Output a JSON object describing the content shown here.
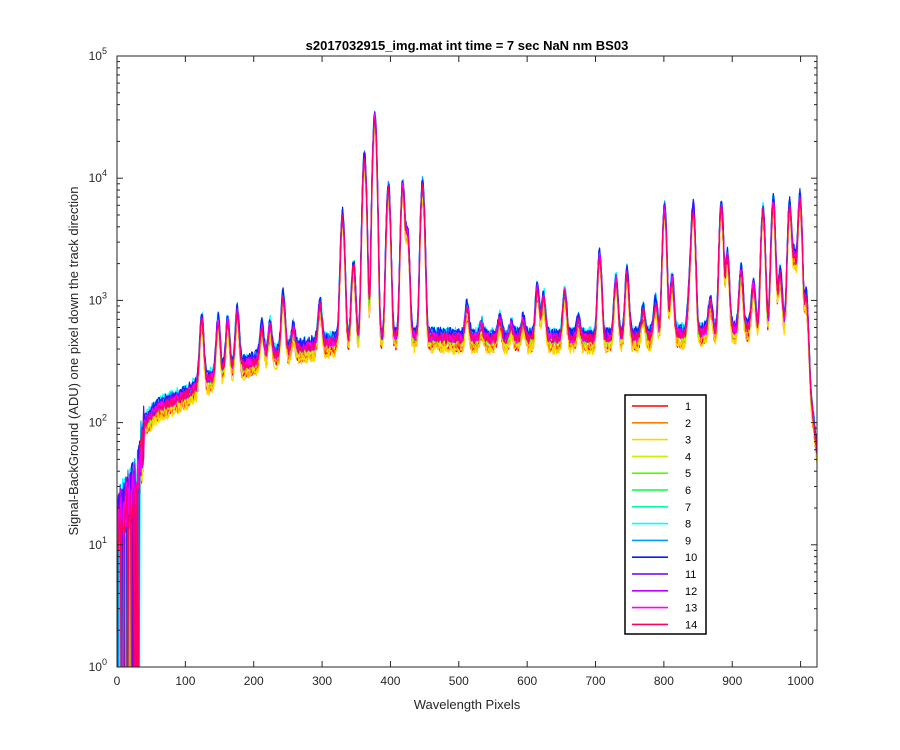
{
  "chart_data": {
    "type": "line",
    "title": "s2017032915_img.mat int time = 7 sec  NaN nm BS03",
    "xlabel": "Wavelength Pixels",
    "ylabel": "Signal-BackGround (ADU) one pixel down the track direction",
    "xlim": [
      0,
      1024
    ],
    "ylim": [
      1,
      100000
    ],
    "yscale": "log",
    "grid": false,
    "legend_position": "lower-right",
    "x_ticks": [
      0,
      100,
      200,
      300,
      400,
      500,
      600,
      700,
      800,
      900,
      1000
    ],
    "y_ticks": [
      {
        "exp": "0",
        "value": 1
      },
      {
        "exp": "1",
        "value": 10
      },
      {
        "exp": "2",
        "value": 100
      },
      {
        "exp": "3",
        "value": 1000
      },
      {
        "exp": "4",
        "value": 10000
      },
      {
        "exp": "5",
        "value": 100000
      }
    ],
    "y_tick_base": "10",
    "baseline": {
      "x": [
        0,
        10,
        20,
        30,
        40,
        50,
        60,
        80,
        100,
        120,
        150,
        180,
        200,
        250,
        300,
        330,
        360,
        400,
        450,
        500,
        600,
        700,
        800,
        900,
        1000,
        1010,
        1024
      ],
      "y": [
        15,
        20,
        25,
        35,
        100,
        120,
        140,
        155,
        175,
        215,
        260,
        300,
        330,
        400,
        460,
        490,
        510,
        520,
        520,
        510,
        510,
        510,
        540,
        600,
        660,
        300,
        60
      ]
    },
    "peaks": [
      {
        "x": 124,
        "y": 730
      },
      {
        "x": 148,
        "y": 700
      },
      {
        "x": 162,
        "y": 680
      },
      {
        "x": 176,
        "y": 820
      },
      {
        "x": 212,
        "y": 620
      },
      {
        "x": 224,
        "y": 640
      },
      {
        "x": 243,
        "y": 1100
      },
      {
        "x": 258,
        "y": 600
      },
      {
        "x": 297,
        "y": 950
      },
      {
        "x": 330,
        "y": 5000
      },
      {
        "x": 346,
        "y": 2000
      },
      {
        "x": 362,
        "y": 15000
      },
      {
        "x": 377,
        "y": 32000
      },
      {
        "x": 397,
        "y": 8500
      },
      {
        "x": 418,
        "y": 8800
      },
      {
        "x": 425,
        "y": 3500
      },
      {
        "x": 447,
        "y": 9000
      },
      {
        "x": 512,
        "y": 900
      },
      {
        "x": 533,
        "y": 650
      },
      {
        "x": 560,
        "y": 720
      },
      {
        "x": 577,
        "y": 650
      },
      {
        "x": 594,
        "y": 700
      },
      {
        "x": 615,
        "y": 1300
      },
      {
        "x": 624,
        "y": 1100
      },
      {
        "x": 655,
        "y": 1200
      },
      {
        "x": 675,
        "y": 700
      },
      {
        "x": 706,
        "y": 2400
      },
      {
        "x": 730,
        "y": 1500
      },
      {
        "x": 746,
        "y": 1700
      },
      {
        "x": 770,
        "y": 850
      },
      {
        "x": 788,
        "y": 1000
      },
      {
        "x": 801,
        "y": 5800
      },
      {
        "x": 812,
        "y": 1500
      },
      {
        "x": 838,
        "y": 1300
      },
      {
        "x": 843,
        "y": 5800
      },
      {
        "x": 868,
        "y": 1000
      },
      {
        "x": 884,
        "y": 6000
      },
      {
        "x": 893,
        "y": 2300
      },
      {
        "x": 913,
        "y": 1800
      },
      {
        "x": 931,
        "y": 1400
      },
      {
        "x": 945,
        "y": 5500
      },
      {
        "x": 960,
        "y": 6500
      },
      {
        "x": 970,
        "y": 1700
      },
      {
        "x": 984,
        "y": 6000
      },
      {
        "x": 991,
        "y": 2300
      },
      {
        "x": 999,
        "y": 7000
      },
      {
        "x": 1008,
        "y": 1100
      }
    ],
    "peak_width": 2.5,
    "series": [
      {
        "name": "1",
        "color": "#ff0000",
        "scale": 0.8
      },
      {
        "name": "2",
        "color": "#ff7f00",
        "scale": 0.85
      },
      {
        "name": "3",
        "color": "#ffd700",
        "scale": 0.78
      },
      {
        "name": "4",
        "color": "#c8f000",
        "scale": 0.9
      },
      {
        "name": "5",
        "color": "#55ff00",
        "scale": 0.95
      },
      {
        "name": "6",
        "color": "#00ff44",
        "scale": 0.98
      },
      {
        "name": "7",
        "color": "#00ffaa",
        "scale": 1.02
      },
      {
        "name": "8",
        "color": "#00ffff",
        "scale": 1.08
      },
      {
        "name": "9",
        "color": "#0099ff",
        "scale": 1.04
      },
      {
        "name": "10",
        "color": "#0022ff",
        "scale": 1.06
      },
      {
        "name": "11",
        "color": "#6600ff",
        "scale": 1.0
      },
      {
        "name": "12",
        "color": "#bb00ff",
        "scale": 0.97
      },
      {
        "name": "13",
        "color": "#ff00ff",
        "scale": 0.96
      },
      {
        "name": "14",
        "color": "#ff0066",
        "scale": 0.95
      }
    ]
  }
}
